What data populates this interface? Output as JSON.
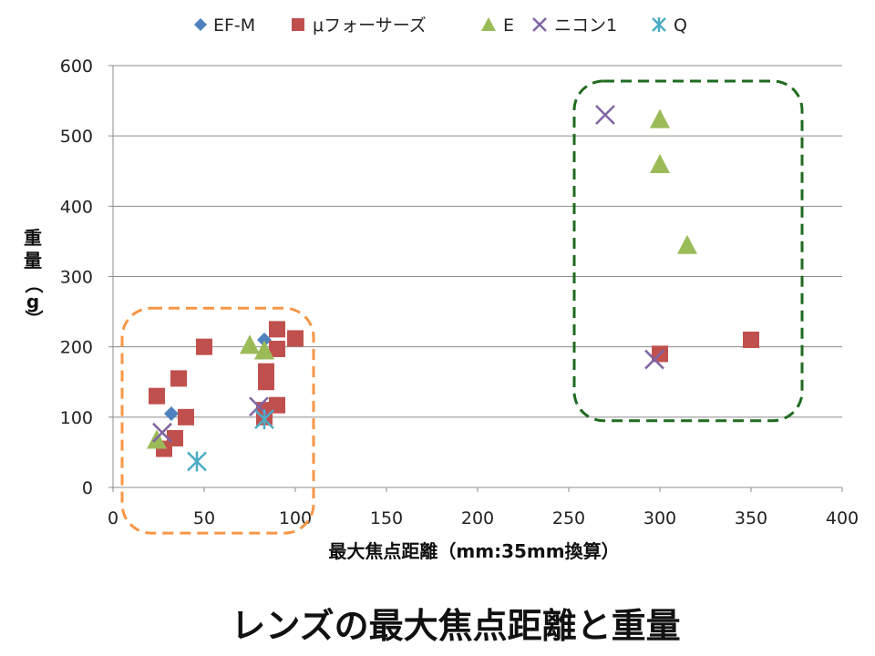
{
  "chart_data": {
    "type": "scatter",
    "title": "レンズの最大焦点距離と重量",
    "xlabel": "最大焦点距離（mm:35mm換算）",
    "ylabel_chars": [
      "重",
      "量",
      "（",
      "g",
      "）"
    ],
    "xlim": [
      0,
      400
    ],
    "ylim": [
      0,
      600
    ],
    "xticks": [
      0,
      50,
      100,
      150,
      200,
      250,
      300,
      350,
      400
    ],
    "yticks": [
      0,
      100,
      200,
      300,
      400,
      500,
      600
    ],
    "grid": "horizontal",
    "legend_position": "top",
    "series": [
      {
        "name": "EF-M",
        "marker": "diamond",
        "color": "#4f81bd",
        "points": [
          [
            32,
            105
          ],
          [
            83,
            210
          ]
        ]
      },
      {
        "name": "μフォーサーズ",
        "marker": "square",
        "color": "#c0504d",
        "points": [
          [
            24,
            130
          ],
          [
            28,
            55
          ],
          [
            34,
            70
          ],
          [
            36,
            155
          ],
          [
            40,
            100
          ],
          [
            50,
            200
          ],
          [
            83,
            100
          ],
          [
            83,
            110
          ],
          [
            84,
            150
          ],
          [
            84,
            165
          ],
          [
            90,
            225
          ],
          [
            90,
            197
          ],
          [
            90,
            117
          ],
          [
            100,
            212
          ],
          [
            300,
            190
          ],
          [
            350,
            210
          ]
        ]
      },
      {
        "name": "E",
        "marker": "triangle",
        "color": "#9bbb59",
        "points": [
          [
            24,
            68
          ],
          [
            75,
            203
          ],
          [
            83,
            195
          ],
          [
            300,
            524
          ],
          [
            300,
            460
          ],
          [
            315,
            345
          ]
        ]
      },
      {
        "name": "ニコン1",
        "marker": "x",
        "color": "#8064a2",
        "points": [
          [
            27,
            78
          ],
          [
            80,
            115
          ],
          [
            270,
            530
          ],
          [
            297,
            182
          ]
        ]
      },
      {
        "name": "Q",
        "marker": "star",
        "color": "#4bacc6",
        "points": [
          [
            46,
            37
          ],
          [
            83,
            97
          ]
        ]
      }
    ],
    "annotations": [
      {
        "shape": "rounded-rect-dashed",
        "color": "#f79646",
        "x_range": [
          5,
          110
        ],
        "y_range": [
          -65,
          255
        ]
      },
      {
        "shape": "rounded-rect-dashed",
        "color": "#1f6b1f",
        "x_range": [
          253,
          378
        ],
        "y_range": [
          95,
          578
        ]
      }
    ]
  }
}
